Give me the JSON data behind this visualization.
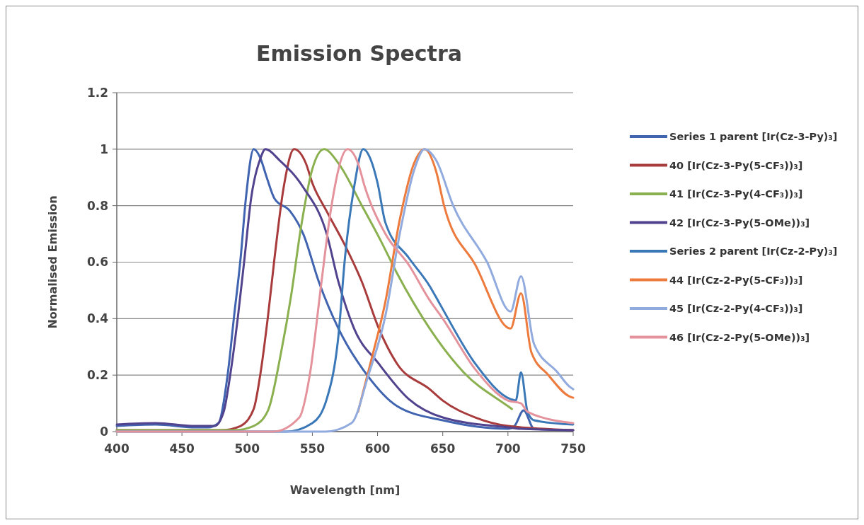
{
  "chart_data": {
    "type": "line",
    "title": "Emission Spectra",
    "xlabel": "Wavelength [nm]",
    "ylabel": "Normalised Emission",
    "xlim": [
      400,
      750
    ],
    "xticks": [
      400,
      450,
      500,
      550,
      600,
      650,
      700,
      750
    ],
    "ylim": [
      0,
      1.2
    ],
    "yticks": [
      0,
      0.2,
      0.4,
      0.6,
      0.8,
      1,
      1.2
    ],
    "grid": "y",
    "legend": "right",
    "line_style": "solid",
    "series": [
      {
        "name": "Series 1 parent [Ir(Cz-3-Py)₃]",
        "color": "#4064b0",
        "x": [
          400,
          430,
          460,
          470,
          478,
          485,
          490,
          495,
          499,
          505,
          510,
          515,
          521,
          533,
          543,
          555,
          570,
          592,
          615,
          650,
          700,
          705,
          712,
          720,
          750
        ],
        "values": [
          0.02,
          0.025,
          0.015,
          0.015,
          0.03,
          0.2,
          0.41,
          0.615,
          0.825,
          1,
          0.97,
          0.9,
          0.825,
          0.78,
          0.7,
          0.53,
          0.365,
          0.2,
          0.09,
          0.04,
          0.01,
          0.02,
          0.075,
          0.01,
          0.005
        ]
      },
      {
        "name": "40 [Ir(Cz-3-Py(5-CF₃))₃]",
        "color": "#a83b3c",
        "x": [
          400,
          480,
          495,
          505,
          510,
          516,
          521,
          528,
          536,
          545,
          550,
          561,
          575,
          588,
          601,
          615,
          640,
          650,
          675,
          700,
          750
        ],
        "values": [
          0.005,
          0.005,
          0.02,
          0.08,
          0.2,
          0.41,
          0.615,
          0.865,
          1,
          0.95,
          0.88,
          0.78,
          0.66,
          0.53,
          0.365,
          0.24,
          0.15,
          0.11,
          0.05,
          0.02,
          0.005
        ]
      },
      {
        "name": "41 [Ir(Cz-3-Py(4-CF₃))₃]",
        "color": "#8bb04f",
        "x": [
          400,
          490,
          505,
          516,
          526,
          534,
          541,
          550,
          559,
          570,
          588,
          602,
          615,
          640,
          666,
          700,
          703
        ],
        "values": [
          0.005,
          0.005,
          0.02,
          0.075,
          0.28,
          0.49,
          0.715,
          0.93,
          1,
          0.95,
          0.8,
          0.68,
          0.56,
          0.365,
          0.21,
          0.09,
          0.08
        ]
      },
      {
        "name": "42 [Ir(Cz-3-Py(5-OMe))₃]",
        "color": "#52438e",
        "x": [
          400,
          430,
          460,
          475,
          482,
          487,
          493,
          498,
          503,
          510,
          514,
          525,
          543,
          561,
          570,
          582,
          601,
          624,
          650,
          700,
          710,
          750
        ],
        "values": [
          0.025,
          0.03,
          0.02,
          0.02,
          0.07,
          0.2,
          0.41,
          0.615,
          0.825,
          0.965,
          1,
          0.96,
          0.865,
          0.7,
          0.53,
          0.365,
          0.24,
          0.115,
          0.05,
          0.015,
          0.01,
          0.005
        ]
      },
      {
        "name": "Series 2 parent [Ir(Cz-2-Py)₃]",
        "color": "#3b78b8",
        "x": [
          400,
          530,
          550,
          561,
          570,
          575,
          582,
          589,
          595,
          600,
          606,
          624,
          640,
          648,
          675,
          702,
          706,
          710,
          715,
          720,
          750
        ],
        "values": [
          0,
          0,
          0.03,
          0.115,
          0.34,
          0.615,
          0.865,
          1,
          0.96,
          0.88,
          0.74,
          0.615,
          0.515,
          0.45,
          0.24,
          0.115,
          0.11,
          0.21,
          0.07,
          0.04,
          0.025
        ]
      },
      {
        "name": "44 [Ir(Cz-2-Py(5-CF₃))₃]",
        "color": "#ec7b3d",
        "x": [
          585,
          595,
          606,
          617,
          628,
          636,
          645,
          651,
          675,
          702,
          710,
          718,
          731,
          747,
          750
        ],
        "values": [
          0.07,
          0.25,
          0.46,
          0.75,
          0.95,
          1,
          0.92,
          0.8,
          0.59,
          0.365,
          0.49,
          0.28,
          0.2,
          0.125,
          0.12
        ]
      },
      {
        "name": "45 [Ir(Cz-2-Py(4-CF₃))₃]",
        "color": "#92abde",
        "x": [
          400,
          560,
          580,
          593,
          606,
          617,
          628,
          636,
          645,
          658,
          684,
          702,
          710,
          720,
          738,
          747,
          750
        ],
        "values": [
          0,
          0,
          0.03,
          0.2,
          0.41,
          0.7,
          0.925,
          1,
          0.96,
          0.8,
          0.6,
          0.425,
          0.55,
          0.31,
          0.21,
          0.16,
          0.15
        ]
      },
      {
        "name": "46 [Ir(Cz-2-Py(5-OMe))₃]",
        "color": "#e4939c",
        "x": [
          400,
          520,
          540,
          548,
          557,
          564,
          577,
          585,
          590,
          606,
          624,
          640,
          650,
          675,
          700,
          710,
          715,
          750
        ],
        "values": [
          0,
          0,
          0.05,
          0.2,
          0.53,
          0.78,
          1,
          0.95,
          0.87,
          0.7,
          0.59,
          0.465,
          0.4,
          0.22,
          0.11,
          0.1,
          0.07,
          0.03
        ]
      }
    ]
  }
}
